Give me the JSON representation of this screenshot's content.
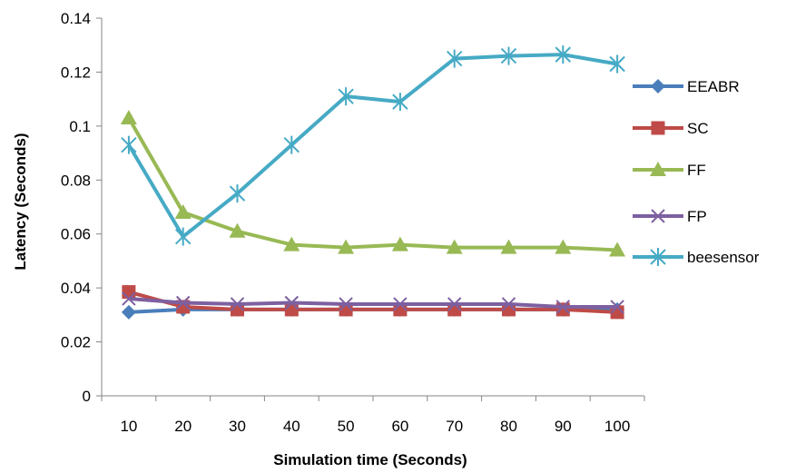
{
  "chart_data": {
    "type": "line",
    "title": "",
    "xlabel": "Simulation time (Seconds)",
    "ylabel": "Latency (Seconds)",
    "categories": [
      "10",
      "20",
      "30",
      "40",
      "50",
      "60",
      "70",
      "80",
      "90",
      "100"
    ],
    "ylim": [
      0,
      0.14
    ],
    "yticks": [
      "0",
      "0.02",
      "0.04",
      "0.06",
      "0.08",
      "0.1",
      "0.12",
      "0.14"
    ],
    "grid": false,
    "legend_position": "right",
    "series": [
      {
        "name": "EEABR",
        "color": "#4a7ebb",
        "marker": "diamond",
        "values": [
          0.031,
          0.032,
          0.032,
          0.032,
          0.032,
          0.032,
          0.032,
          0.032,
          0.032,
          0.032
        ]
      },
      {
        "name": "SC",
        "color": "#be4b48",
        "marker": "square",
        "values": [
          0.0385,
          0.033,
          0.032,
          0.032,
          0.032,
          0.032,
          0.032,
          0.032,
          0.032,
          0.031
        ]
      },
      {
        "name": "FF",
        "color": "#98b954",
        "marker": "triangle",
        "values": [
          0.103,
          0.068,
          0.061,
          0.056,
          0.055,
          0.056,
          0.055,
          0.055,
          0.055,
          0.054
        ]
      },
      {
        "name": "FP",
        "color": "#7d60a0",
        "marker": "x",
        "values": [
          0.036,
          0.0345,
          0.034,
          0.0345,
          0.034,
          0.034,
          0.034,
          0.034,
          0.033,
          0.033
        ]
      },
      {
        "name": "beesensor",
        "color": "#46aac5",
        "marker": "star",
        "values": [
          0.093,
          0.059,
          0.075,
          0.093,
          0.111,
          0.109,
          0.125,
          0.126,
          0.1265,
          0.123
        ]
      }
    ]
  }
}
